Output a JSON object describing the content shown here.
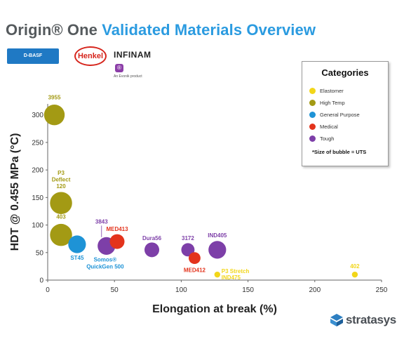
{
  "header": {
    "title_prefix": "Origin® One",
    "title_accent": "Validated Materials Overview"
  },
  "logos": {
    "basf": "D-BASF",
    "henkel": "Henkel",
    "infinam": "INFINAM",
    "infinam_badge": "®",
    "infinam_sub": "An Evonik product"
  },
  "brand": {
    "name": "stratasys"
  },
  "colors": {
    "Elastomer": "#f2d619",
    "High Temp": "#a39a14",
    "General Purpose": "#1e93d6",
    "Medical": "#e3331c",
    "Tough": "#7d3fa8"
  },
  "legend": {
    "title": "Categories",
    "items": [
      "Elastomer",
      "High Temp",
      "General Purpose",
      "Medical",
      "Tough"
    ],
    "note": "*Size of bubble = UTS"
  },
  "chart_data": {
    "type": "scatter",
    "xlabel": "Elongation at break (%)",
    "ylabel": "HDT @ 0.455 MPa (°C)",
    "xlim": [
      0,
      250
    ],
    "ylim": [
      0,
      320
    ],
    "xticks": [
      0,
      50,
      100,
      150,
      200,
      250
    ],
    "yticks": [
      0,
      50,
      100,
      150,
      200,
      250,
      300
    ],
    "grid": false,
    "legend_position": "top-right",
    "points": [
      {
        "label": "3955",
        "category": "High Temp",
        "x": 5,
        "y": 300,
        "size": 14
      },
      {
        "label": "P3\nDeflect\n120",
        "category": "High Temp",
        "x": 10,
        "y": 140,
        "size": 15
      },
      {
        "label": "403",
        "category": "High Temp",
        "x": 10,
        "y": 82,
        "size": 15
      },
      {
        "label": "ST45",
        "category": "General Purpose",
        "x": 22,
        "y": 65,
        "size": 12
      },
      {
        "label": "Somos®\nQuickGen 500",
        "category": "General Purpose",
        "x": 43,
        "y": 62,
        "size": 9
      },
      {
        "label": "3843",
        "category": "Tough",
        "x": 44,
        "y": 62,
        "size": 12
      },
      {
        "label": "MED413",
        "category": "Medical",
        "x": 52,
        "y": 70,
        "size": 10
      },
      {
        "label": "Dura56",
        "category": "Tough",
        "x": 78,
        "y": 55,
        "size": 10
      },
      {
        "label": "3172",
        "category": "Tough",
        "x": 105,
        "y": 55,
        "size": 9
      },
      {
        "label": "MED412",
        "category": "Medical",
        "x": 110,
        "y": 40,
        "size": 8
      },
      {
        "label": "IND405",
        "category": "Tough",
        "x": 127,
        "y": 55,
        "size": 12
      },
      {
        "label": "P3 Stretch\nIND475",
        "category": "Elastomer",
        "x": 127,
        "y": 10,
        "size": 4
      },
      {
        "label": "402",
        "category": "Elastomer",
        "x": 230,
        "y": 10,
        "size": 4
      }
    ]
  }
}
